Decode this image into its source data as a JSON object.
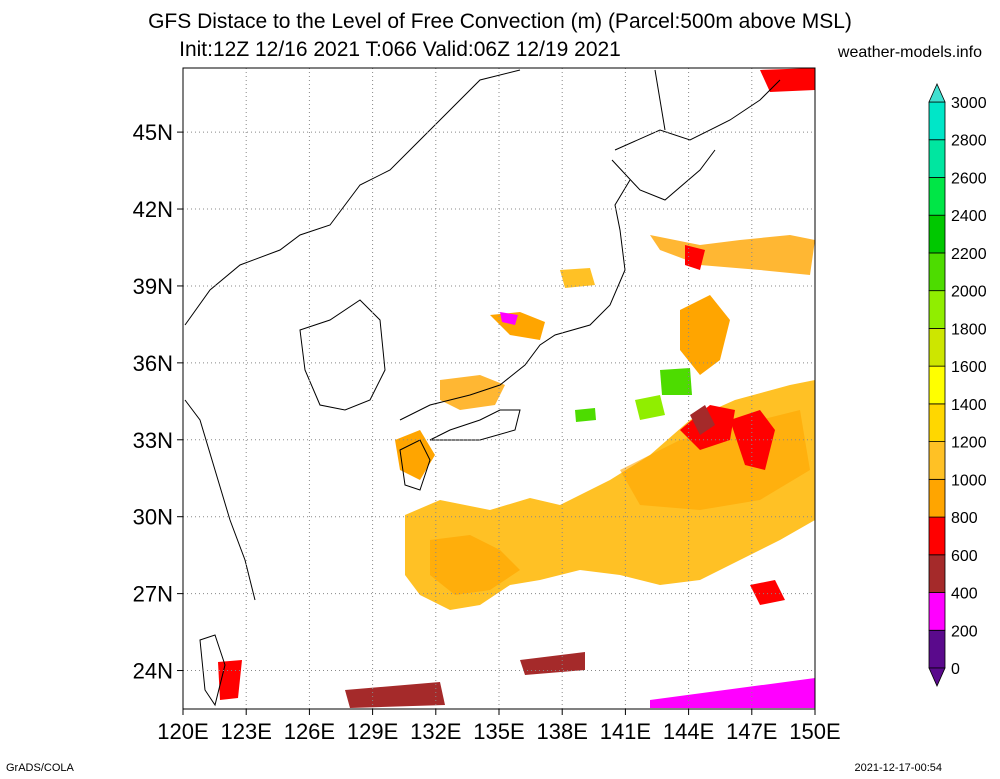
{
  "header": {
    "title": "GFS Distace to the Level of Free Convection (m) (Parcel:500m above MSL)",
    "subtitle": "Init:12Z 12/16 2021 T:066 Valid:06Z 12/19 2021",
    "site": "weather-models.info"
  },
  "map": {
    "lon_range": [
      120,
      150
    ],
    "lat_range": [
      22.5,
      47.5
    ],
    "lon_ticks": [
      "120E",
      "123E",
      "126E",
      "129E",
      "132E",
      "135E",
      "138E",
      "141E",
      "144E",
      "147E",
      "150E"
    ],
    "lat_ticks": [
      "24N",
      "27N",
      "30N",
      "33N",
      "36N",
      "39N",
      "42N",
      "45N"
    ],
    "grid": "dotted"
  },
  "colorbar": {
    "levels": [
      "0",
      "200",
      "400",
      "600",
      "800",
      "1000",
      "1200",
      "1400",
      "1600",
      "1800",
      "2000",
      "2200",
      "2400",
      "2600",
      "2800",
      "3000"
    ],
    "colors": [
      "#5a0a8c",
      "#ff00ff",
      "#a52a2a",
      "#ff0000",
      "#ffa500",
      "#ffc125",
      "#ffd700",
      "#ffff00",
      "#cde600",
      "#90ee00",
      "#4ddc00",
      "#00c800",
      "#00e646",
      "#00e6a0",
      "#00e6c8",
      "#40e0d0"
    ]
  },
  "footer": {
    "left": "GrADS/COLA",
    "right": "2021-12-17-00:54"
  }
}
